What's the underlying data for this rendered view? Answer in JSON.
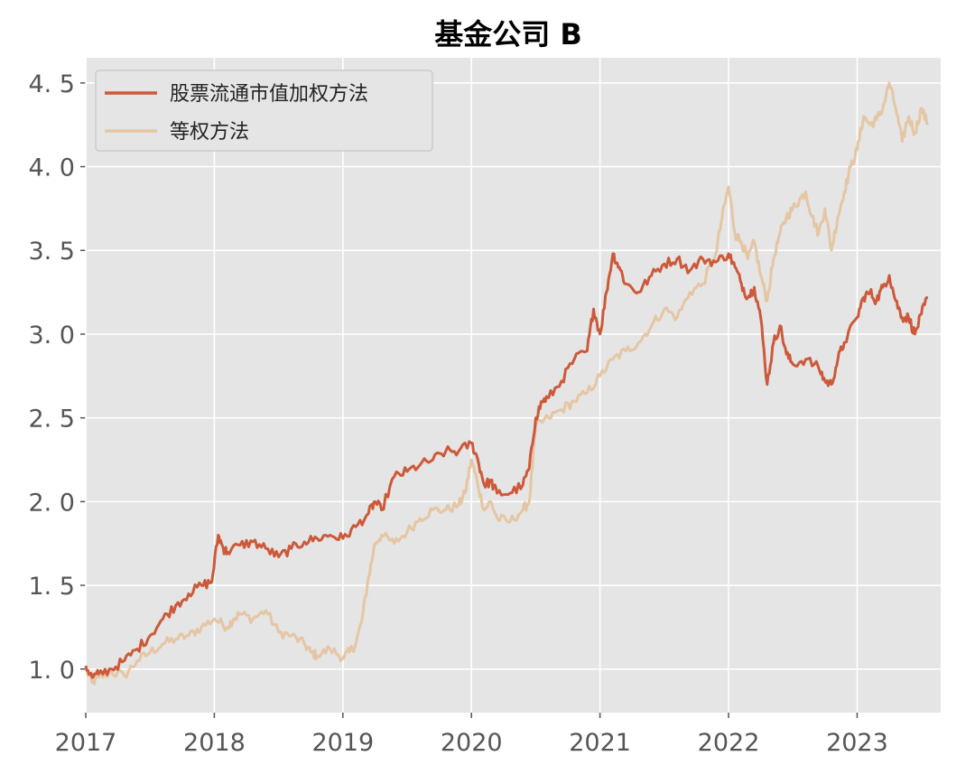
{
  "chart_data": {
    "type": "line",
    "title": "基金公司 B",
    "xlabel": "",
    "ylabel": "",
    "xlim": [
      2017.0,
      2023.65
    ],
    "ylim": [
      0.74,
      4.65
    ],
    "x_ticks": [
      2017,
      2018,
      2019,
      2020,
      2021,
      2022,
      2023
    ],
    "x_tick_labels": [
      "2017",
      "2018",
      "2019",
      "2020",
      "2021",
      "2022",
      "2023"
    ],
    "y_ticks": [
      1.0,
      1.5,
      2.0,
      2.5,
      3.0,
      3.5,
      4.0,
      4.5
    ],
    "y_tick_labels": [
      "1. 0",
      "1. 5",
      "2. 0",
      "2. 5",
      "3. 0",
      "3. 5",
      "4. 0",
      "4. 5"
    ],
    "grid": true,
    "legend_position": "top-left",
    "background": "#e5e5e5",
    "series": [
      {
        "name": "股票流通市值加权方法",
        "color": "#cc5a3a",
        "x": [
          2017.0,
          2017.05,
          2017.1,
          2017.2,
          2017.3,
          2017.4,
          2017.5,
          2017.6,
          2017.7,
          2017.8,
          2017.9,
          2017.98,
          2018.03,
          2018.07,
          2018.1,
          2018.2,
          2018.3,
          2018.4,
          2018.5,
          2018.6,
          2018.7,
          2018.8,
          2018.9,
          2019.0,
          2019.1,
          2019.2,
          2019.25,
          2019.3,
          2019.4,
          2019.5,
          2019.6,
          2019.7,
          2019.8,
          2019.9,
          2020.0,
          2020.05,
          2020.1,
          2020.15,
          2020.2,
          2020.3,
          2020.4,
          2020.45,
          2020.5,
          2020.55,
          2020.6,
          2020.7,
          2020.8,
          2020.9,
          2020.95,
          2021.0,
          2021.05,
          2021.1,
          2021.15,
          2021.2,
          2021.3,
          2021.4,
          2021.5,
          2021.6,
          2021.7,
          2021.8,
          2021.9,
          2022.0,
          2022.05,
          2022.1,
          2022.15,
          2022.2,
          2022.25,
          2022.3,
          2022.35,
          2022.4,
          2022.45,
          2022.5,
          2022.6,
          2022.7,
          2022.75,
          2022.8,
          2022.85,
          2022.9,
          2023.0,
          2023.05,
          2023.1,
          2023.15,
          2023.2,
          2023.25,
          2023.3,
          2023.35,
          2023.4,
          2023.45,
          2023.5,
          2023.55
        ],
        "y": [
          1.02,
          0.95,
          0.97,
          1.0,
          1.05,
          1.12,
          1.2,
          1.3,
          1.38,
          1.45,
          1.5,
          1.52,
          1.8,
          1.72,
          1.7,
          1.74,
          1.76,
          1.72,
          1.67,
          1.72,
          1.76,
          1.78,
          1.8,
          1.78,
          1.85,
          1.93,
          2.0,
          1.95,
          2.15,
          2.18,
          2.22,
          2.25,
          2.3,
          2.3,
          2.35,
          2.25,
          2.1,
          2.12,
          2.05,
          2.05,
          2.1,
          2.2,
          2.5,
          2.6,
          2.62,
          2.72,
          2.85,
          2.9,
          3.15,
          3.0,
          3.25,
          3.48,
          3.4,
          3.3,
          3.25,
          3.35,
          3.42,
          3.45,
          3.38,
          3.45,
          3.43,
          3.48,
          3.4,
          3.3,
          3.22,
          3.28,
          3.1,
          2.7,
          2.95,
          3.05,
          2.88,
          2.82,
          2.85,
          2.8,
          2.72,
          2.7,
          2.85,
          2.95,
          3.1,
          3.22,
          3.25,
          3.2,
          3.28,
          3.35,
          3.2,
          3.1,
          3.1,
          3.0,
          3.12,
          3.22
        ]
      },
      {
        "name": "等权方法",
        "color": "#e5c6a4",
        "x": [
          2017.0,
          2017.05,
          2017.1,
          2017.2,
          2017.3,
          2017.4,
          2017.5,
          2017.6,
          2017.7,
          2017.8,
          2017.9,
          2018.0,
          2018.1,
          2018.15,
          2018.2,
          2018.3,
          2018.4,
          2018.5,
          2018.6,
          2018.7,
          2018.75,
          2018.8,
          2018.9,
          2019.0,
          2019.05,
          2019.1,
          2019.15,
          2019.2,
          2019.25,
          2019.3,
          2019.4,
          2019.5,
          2019.6,
          2019.7,
          2019.8,
          2019.9,
          2019.95,
          2020.0,
          2020.05,
          2020.1,
          2020.15,
          2020.2,
          2020.3,
          2020.4,
          2020.45,
          2020.5,
          2020.6,
          2020.7,
          2020.8,
          2020.9,
          2021.0,
          2021.1,
          2021.2,
          2021.3,
          2021.4,
          2021.5,
          2021.6,
          2021.7,
          2021.8,
          2021.9,
          2021.95,
          2022.0,
          2022.05,
          2022.1,
          2022.15,
          2022.2,
          2022.25,
          2022.3,
          2022.35,
          2022.4,
          2022.45,
          2022.5,
          2022.55,
          2022.6,
          2022.65,
          2022.7,
          2022.75,
          2022.8,
          2022.85,
          2022.9,
          2022.95,
          2023.0,
          2023.05,
          2023.1,
          2023.15,
          2023.2,
          2023.25,
          2023.3,
          2023.35,
          2023.4,
          2023.45,
          2023.5,
          2023.55
        ],
        "y": [
          1.0,
          0.92,
          0.95,
          0.98,
          0.96,
          1.05,
          1.1,
          1.15,
          1.18,
          1.2,
          1.25,
          1.3,
          1.25,
          1.3,
          1.33,
          1.3,
          1.35,
          1.22,
          1.2,
          1.15,
          1.1,
          1.08,
          1.12,
          1.07,
          1.1,
          1.15,
          1.3,
          1.55,
          1.75,
          1.8,
          1.75,
          1.82,
          1.9,
          1.95,
          1.95,
          1.98,
          2.05,
          2.25,
          2.1,
          1.95,
          2.0,
          1.9,
          1.88,
          1.95,
          2.0,
          2.45,
          2.5,
          2.55,
          2.6,
          2.65,
          2.75,
          2.85,
          2.9,
          2.95,
          3.05,
          3.15,
          3.1,
          3.25,
          3.3,
          3.48,
          3.7,
          3.88,
          3.6,
          3.55,
          3.45,
          3.55,
          3.35,
          3.2,
          3.45,
          3.6,
          3.7,
          3.75,
          3.8,
          3.85,
          3.7,
          3.6,
          3.75,
          3.5,
          3.7,
          3.85,
          4.0,
          4.1,
          4.3,
          4.25,
          4.28,
          4.35,
          4.5,
          4.35,
          4.15,
          4.3,
          4.2,
          4.35,
          4.25
        ]
      }
    ]
  }
}
